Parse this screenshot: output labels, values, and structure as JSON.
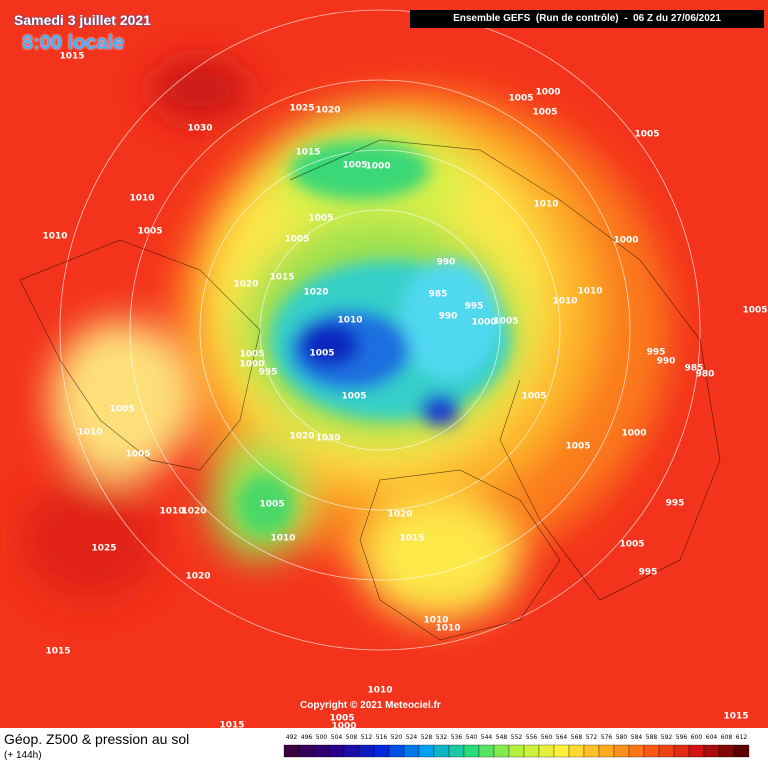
{
  "header": {
    "date": "Samedi 3 juillet 2021",
    "time": "8:00 locale",
    "run": "Ensemble GEFS  (Run de contrôle)  -  06 Z du 27/06/2021"
  },
  "copyright": "Copyright © 2021 Meteociel.fr",
  "footer": {
    "title": "Géop. Z500 & pression au sol",
    "lead": "(+ 144h)"
  },
  "scale": [
    492,
    496,
    500,
    504,
    508,
    512,
    516,
    520,
    524,
    528,
    532,
    536,
    540,
    544,
    548,
    552,
    556,
    560,
    564,
    568,
    572,
    576,
    580,
    584,
    588,
    592,
    596,
    600,
    604,
    608,
    612
  ],
  "isobar_labels": [
    1015,
    1030,
    1025,
    1020,
    1015,
    1005,
    1000,
    1005,
    1000,
    1005,
    1005,
    1010,
    1010,
    1005,
    1005,
    1005,
    1010,
    1000,
    990,
    985,
    995,
    990,
    1000,
    1005,
    1010,
    1010,
    1015,
    1020,
    1020,
    1010,
    1005,
    1005,
    1000,
    995,
    995,
    990,
    985,
    980,
    1005,
    1005,
    1005,
    1005,
    1010,
    1005,
    1020,
    1030,
    1005,
    1000,
    995,
    1005,
    1010,
    1020,
    1015,
    1010,
    1020,
    1025,
    1020,
    1005,
    995,
    1010,
    1010,
    1015,
    1010,
    1005,
    1000,
    1015,
    1015
  ]
}
